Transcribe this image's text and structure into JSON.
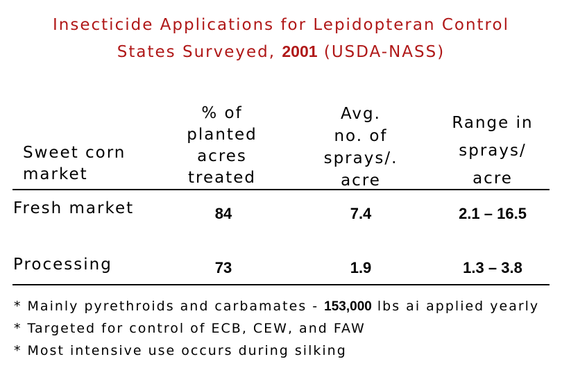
{
  "title": {
    "line1": "Insecticide Applications for Lepidopteran Control",
    "line2_prefix": "States Surveyed,",
    "line2_year": "2001",
    "line2_suffix": "(USDA-NASS)"
  },
  "table": {
    "headers": {
      "market": [
        "Sweet corn",
        "market"
      ],
      "pct_treated": [
        "% of",
        "planted",
        "acres",
        "treated"
      ],
      "avg_sprays": [
        "Avg.",
        "no. of",
        "sprays/.",
        "acre"
      ],
      "range_sprays": [
        "Range in",
        "sprays/",
        "acre"
      ]
    },
    "rows": [
      {
        "market": "Fresh market",
        "pct_treated": "84",
        "avg_sprays": "7.4",
        "range_sprays": "2.1 – 16.5"
      },
      {
        "market": "Processing",
        "pct_treated": "73",
        "avg_sprays": "1.9",
        "range_sprays": "1.3 – 3.8"
      }
    ]
  },
  "notes": [
    {
      "prefix": "* Mainly pyrethroids and carbamates -",
      "number": "153,000",
      "suffix": "lbs ai applied yearly"
    },
    {
      "prefix": "* Targeted for control of ECB, CEW, and FAW"
    },
    {
      "prefix": "* Most intensive use occurs during silking"
    }
  ],
  "colors": {
    "title": "#b01818",
    "text": "#000000",
    "background": "#ffffff"
  }
}
